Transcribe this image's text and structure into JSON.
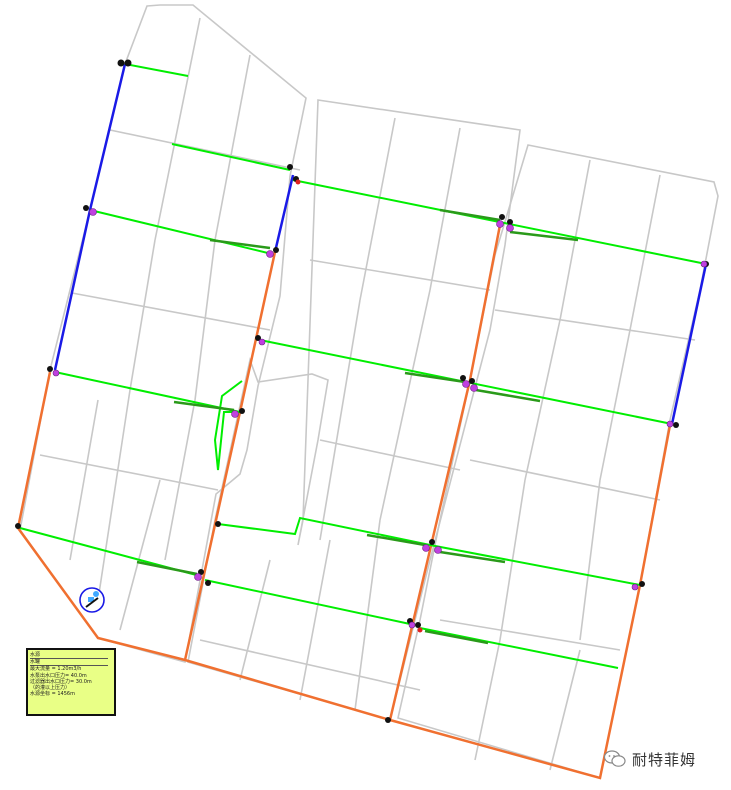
{
  "legend": {
    "row1": "水源",
    "row2": "水罐",
    "row3": "最大流量      =  1.20m3/h",
    "row4": "水泵出水口压力=  40.0m",
    "row5": "过滤器出水口压力= 30.0m",
    "row6": "（的灌以上压力）",
    "row7": "水源坐标 = 1456m"
  },
  "watermark": {
    "text": "耐特菲姆",
    "icon": "wechat-icon"
  },
  "colors": {
    "block_outline": "#c8c8c8",
    "lateral": "#00ee00",
    "lateral_dark": "#2a9a1a",
    "submain": "#1a1ae6",
    "mainline": "#f07030",
    "valve": "#c040e0",
    "valve_black": "#111111",
    "legend_bg": "#e9ff86"
  }
}
